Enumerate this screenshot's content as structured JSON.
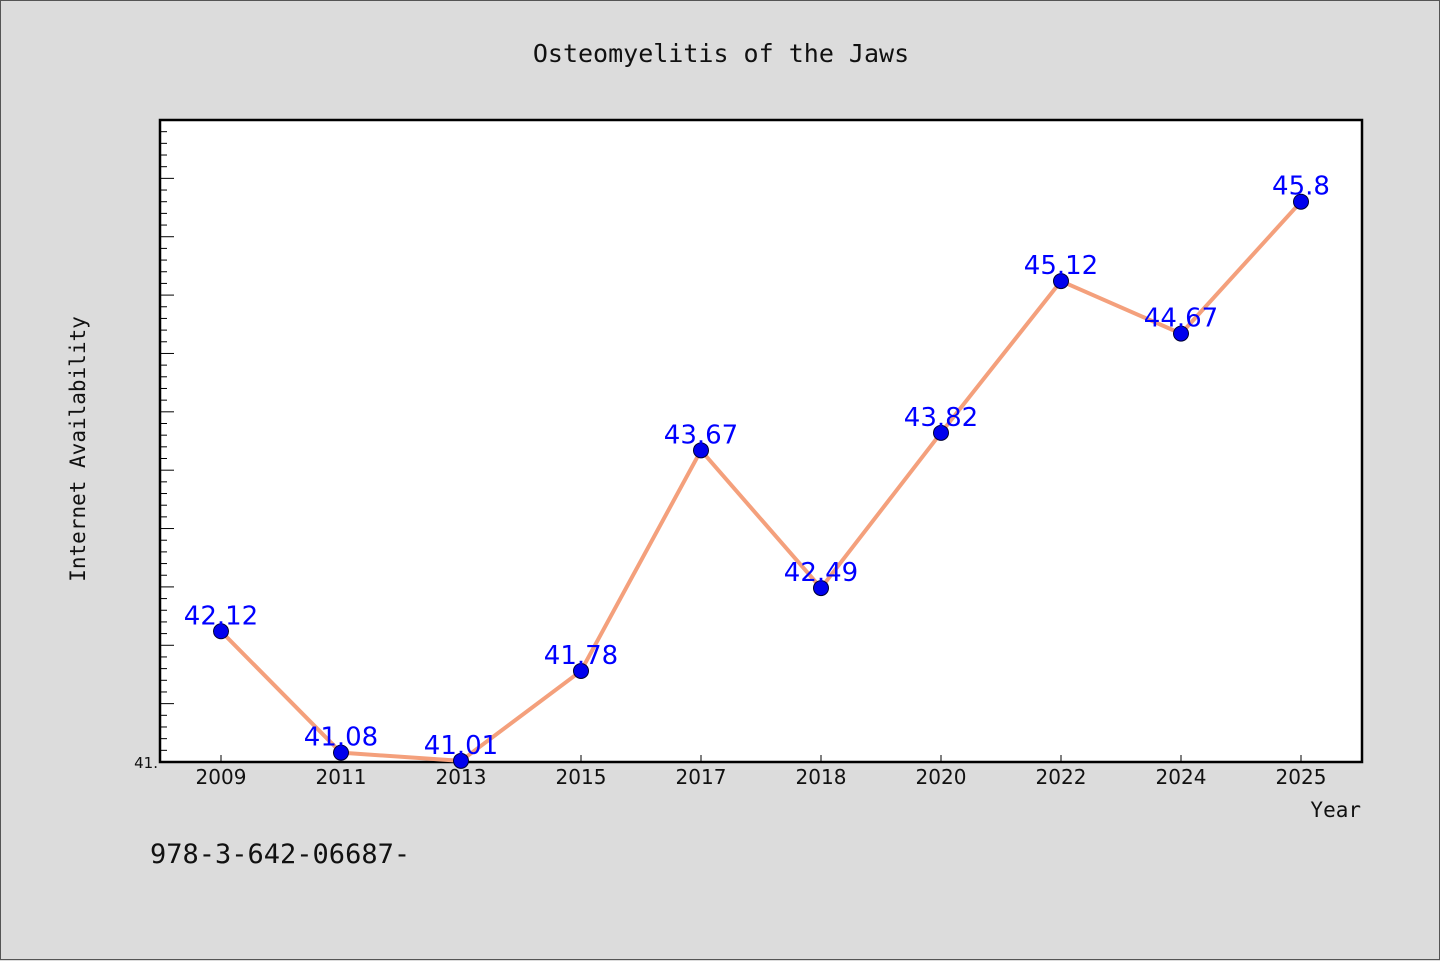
{
  "chart_data": {
    "type": "line",
    "title": "Osteomyelitis of the Jaws",
    "xlabel": "Year",
    "ylabel": "Internet Availability",
    "categories": [
      "2009",
      "2011",
      "2013",
      "2015",
      "2017",
      "2018",
      "2020",
      "2022",
      "2024",
      "2025"
    ],
    "series": [
      {
        "values": [
          42.12,
          41.08,
          41.01,
          41.78,
          43.67,
          42.49,
          43.82,
          45.12,
          44.67,
          45.8
        ],
        "data_labels": [
          "42.12",
          "41.08",
          "41.01",
          "41.78",
          "43.67",
          "42.49",
          "43.82",
          "45.12",
          "44.67",
          "45.8"
        ]
      }
    ],
    "ylim": [
      41.0,
      46.5
    ],
    "y_tick_labels": [
      "41."
    ],
    "grid": false,
    "legend": "none",
    "colors": {
      "line": "#f4a07c",
      "marker": "#0000ee",
      "marker_edge": "#000033",
      "data_label": "#0000ff",
      "plot_background": "#ffffff",
      "figure_background": "#dcdcdc"
    }
  },
  "annotation": "978-3-642-06687-"
}
